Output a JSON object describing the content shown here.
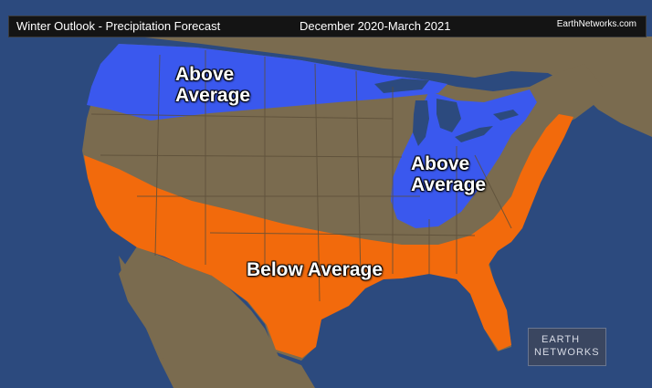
{
  "header": {
    "title": "Winter Outlook - Precipitation Forecast",
    "period": "December 2020-March 2021",
    "brand": "EarthNetworks.com"
  },
  "regions": {
    "north_above": {
      "line1": "Above",
      "line2": "Average"
    },
    "east_above": {
      "line1": "Above",
      "line2": "Average"
    },
    "south_below": {
      "label": "Below Average"
    }
  },
  "logo": {
    "line1": "EARTH",
    "line2": "NETWORKS"
  },
  "colors": {
    "ocean": "#2c4a7e",
    "land": "#7a6b4f",
    "above_average": "#3a58ee",
    "below_average": "#f26a0c",
    "borders": "#5b4e38"
  }
}
